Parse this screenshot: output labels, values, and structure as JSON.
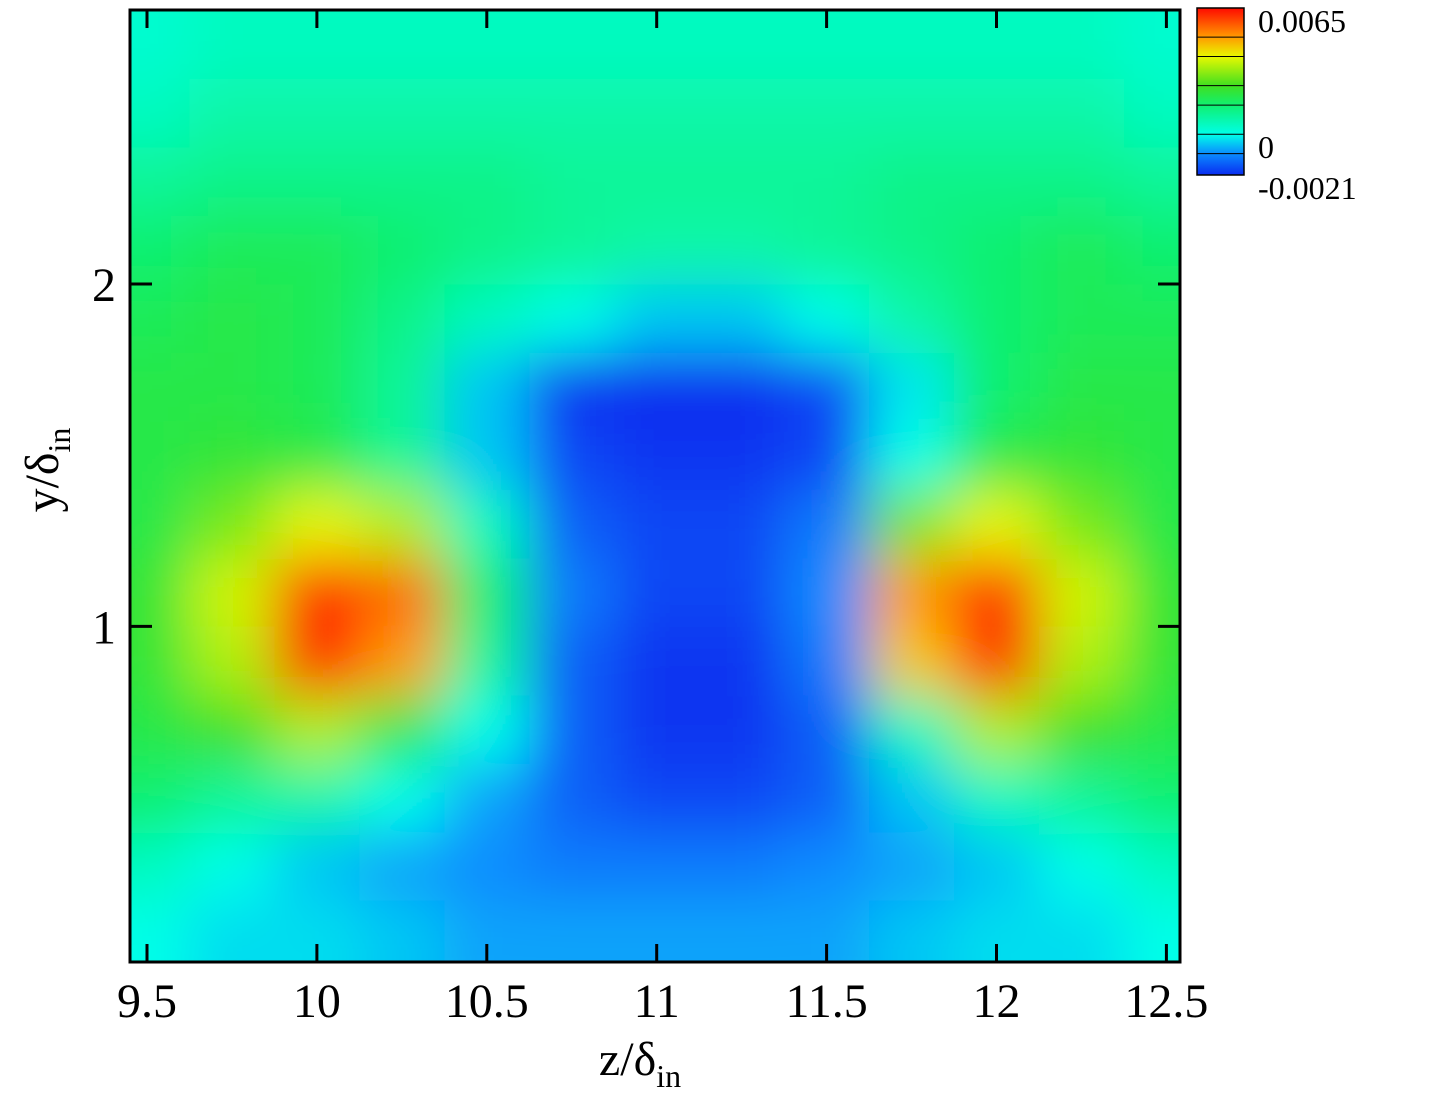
{
  "chart_data": {
    "type": "contour",
    "xlabel": "z/δ",
    "xlabel_sub": "in",
    "ylabel": "y/δ",
    "ylabel_sub": "in",
    "xlim": [
      9.45,
      12.54
    ],
    "ylim": [
      0.02,
      2.8
    ],
    "xticks": [
      9.5,
      10,
      10.5,
      11,
      11.5,
      12,
      12.5
    ],
    "yticks": [
      1,
      2
    ],
    "x": [
      9.5,
      9.75,
      10,
      10.25,
      10.5,
      10.75,
      11,
      11.25,
      11.5,
      11.75,
      12,
      12.25,
      12.5
    ],
    "y": [
      0.1,
      0.3,
      0.5,
      0.7,
      0.9,
      1.1,
      1.3,
      1.5,
      1.7,
      1.9,
      2.1,
      2.3,
      2.5,
      2.7
    ],
    "z": [
      [
        0,
        -0.0003,
        -0.0003,
        -0.0005,
        -0.0008,
        -0.0008,
        -0.0008,
        -0.0008,
        -0.0008,
        -0.0005,
        -0.0003,
        -0.0003,
        0
      ],
      [
        0.0005,
        0,
        -0.0005,
        -0.0008,
        -0.001,
        -0.0012,
        -0.0012,
        -0.0012,
        -0.001,
        -0.0008,
        -0.0005,
        0,
        0.0005
      ],
      [
        0.0015,
        0.001,
        0.0008,
        0,
        -0.0008,
        -0.0015,
        -0.0018,
        -0.0018,
        -0.0015,
        -0.0005,
        0.0005,
        0.001,
        0.0015
      ],
      [
        0.002,
        0.0025,
        0.0035,
        0.002,
        0,
        -0.0015,
        -0.002,
        -0.002,
        -0.0015,
        0.0005,
        0.0035,
        0.0025,
        0.002
      ],
      [
        0.0022,
        0.0035,
        0.0062,
        0.005,
        0.001,
        -0.0015,
        -0.002,
        -0.002,
        -0.0012,
        0.0045,
        0.0062,
        0.0035,
        0.0022
      ],
      [
        0.0022,
        0.0038,
        0.0062,
        0.0055,
        0.0015,
        -0.0012,
        -0.0018,
        -0.0018,
        -0.001,
        0.005,
        0.0062,
        0.0038,
        0.0022
      ],
      [
        0.002,
        0.003,
        0.004,
        0.0035,
        0.0005,
        -0.0015,
        -0.0018,
        -0.0018,
        -0.0012,
        0.003,
        0.004,
        0.003,
        0.002
      ],
      [
        0.002,
        0.0022,
        0.002,
        0.001,
        -0.0005,
        -0.0018,
        -0.002,
        -0.002,
        -0.0018,
        0,
        0.002,
        0.0022,
        0.002
      ],
      [
        0.002,
        0.002,
        0.0018,
        0.001,
        -0.0005,
        -0.002,
        -0.0021,
        -0.0021,
        -0.0018,
        -0.0002,
        0.0015,
        0.002,
        0.002
      ],
      [
        0.0018,
        0.002,
        0.0018,
        0.0012,
        0.0005,
        0,
        -0.0005,
        -0.0005,
        0,
        0.0008,
        0.0015,
        0.0018,
        0.0018
      ],
      [
        0.0015,
        0.0018,
        0.0018,
        0.0015,
        0.0012,
        0.001,
        0.0008,
        0.0008,
        0.001,
        0.0012,
        0.0015,
        0.0018,
        0.0015
      ],
      [
        0.001,
        0.0012,
        0.0012,
        0.0012,
        0.0012,
        0.001,
        0.001,
        0.001,
        0.001,
        0.0012,
        0.0012,
        0.0012,
        0.001
      ],
      [
        0.0005,
        0.0008,
        0.0008,
        0.0008,
        0.0008,
        0.0008,
        0.0008,
        0.0008,
        0.0008,
        0.0008,
        0.0008,
        0.0008,
        0.0005
      ],
      [
        0.0003,
        0.0005,
        0.0005,
        0.0005,
        0.0005,
        0.0005,
        0.0005,
        0.0005,
        0.0005,
        0.0005,
        0.0005,
        0.0005,
        0.0003
      ]
    ],
    "colorscale": [
      [
        -0.0021,
        "#0a2cf0"
      ],
      [
        -0.001,
        "#0a8cff"
      ],
      [
        0,
        "#00ffe8"
      ],
      [
        0.0015,
        "#10f070"
      ],
      [
        0.0025,
        "#40e020"
      ],
      [
        0.004,
        "#e8f800"
      ],
      [
        0.005,
        "#ff9a00"
      ],
      [
        0.0065,
        "#ff0a00"
      ]
    ],
    "colorbar_ticks": [
      0.0065,
      0,
      -0.0021
    ]
  }
}
